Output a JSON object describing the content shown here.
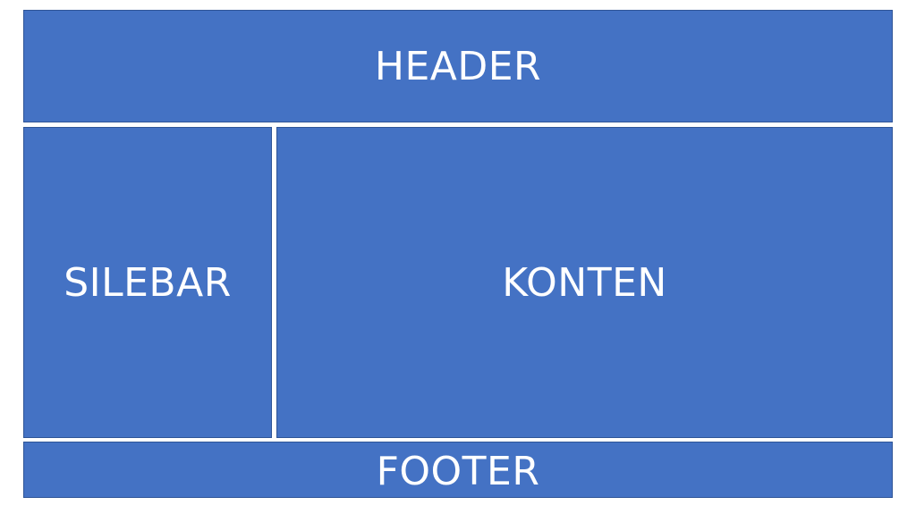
{
  "layout": {
    "header": {
      "label": "HEADER"
    },
    "sidebar": {
      "label": "SILEBAR"
    },
    "content": {
      "label": "KONTEN"
    },
    "footer": {
      "label": "FOOTER"
    }
  },
  "colors": {
    "block_fill": "#4472c4",
    "block_border": "#2f5597",
    "text": "#ffffff",
    "background": "#ffffff"
  }
}
